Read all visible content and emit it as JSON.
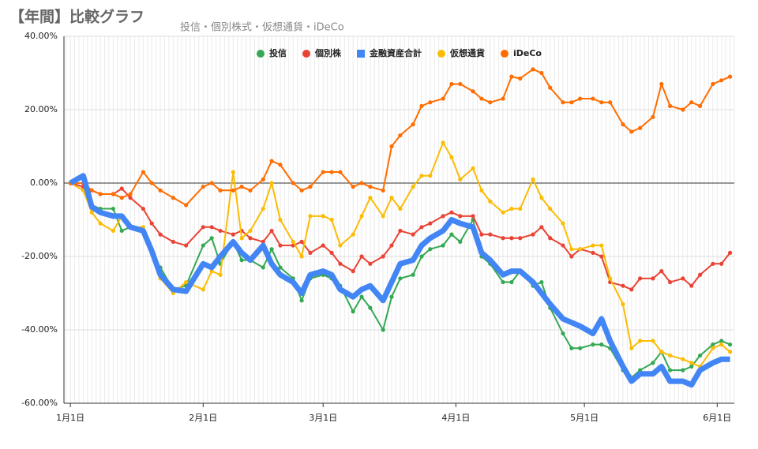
{
  "chart_data": {
    "type": "line",
    "title": "【年間】比較グラフ",
    "subtitle": "投信・個別株式・仮想通貨・iDeCo",
    "x": [
      0,
      3,
      5,
      7,
      10,
      12,
      14,
      17,
      19,
      21,
      24,
      27,
      31,
      33,
      35,
      38,
      40,
      42,
      45,
      47,
      49,
      52,
      54,
      56,
      59,
      61,
      63,
      66,
      68,
      70,
      73,
      75,
      77,
      80,
      82,
      84,
      87,
      89,
      91,
      94,
      96,
      98,
      101,
      103,
      105,
      108,
      110,
      112,
      115,
      117,
      119,
      122,
      124,
      126,
      129,
      131,
      133,
      136,
      138,
      140,
      143,
      145,
      147,
      150,
      152,
      154
    ],
    "xlim": [
      -1.5,
      155
    ],
    "xticks": [
      {
        "value": 0,
        "label": "1月1日"
      },
      {
        "value": 31,
        "label": "2月1日"
      },
      {
        "value": 59,
        "label": "3月1日"
      },
      {
        "value": 90,
        "label": "4月1日"
      },
      {
        "value": 120,
        "label": "5月1日"
      },
      {
        "value": 151,
        "label": "6月1日"
      }
    ],
    "ylim": [
      -60,
      40
    ],
    "yticks": [
      {
        "value": -60,
        "label": "-60.00%"
      },
      {
        "value": -40,
        "label": "-40.00%"
      },
      {
        "value": -20,
        "label": "-20.00%"
      },
      {
        "value": 0,
        "label": "0.00%"
      },
      {
        "value": 20,
        "label": "20.00%"
      },
      {
        "value": 40,
        "label": "40.00%"
      }
    ],
    "grid": true,
    "legend": "top",
    "series": [
      {
        "name": "投信",
        "color": "#34a853",
        "marker": "circle",
        "values": [
          0,
          -1,
          -6,
          -7,
          -7,
          -13,
          -12,
          -13,
          -19,
          -23,
          -29,
          -28,
          -17,
          -15,
          -22,
          -16,
          -21,
          -21,
          -23,
          -18,
          -23,
          -26,
          -32,
          -26,
          -25,
          -26,
          -28,
          -35,
          -31,
          -34,
          -40,
          -31,
          -26,
          -25,
          -20,
          -18,
          -17,
          -14,
          -16,
          -10,
          -20,
          -22,
          -27,
          -27,
          -24,
          -28,
          -27,
          -34,
          -41,
          -45,
          -45,
          -44,
          -44,
          -45,
          -51,
          -53,
          -51,
          -49,
          -46,
          -51,
          -51,
          -50,
          -47,
          -44,
          -43,
          -44
        ]
      },
      {
        "name": "個別株",
        "color": "#ea4335",
        "marker": "circle",
        "values": [
          0,
          -1,
          -2,
          -3,
          -3,
          -1.5,
          -4,
          -7,
          -11,
          -14,
          -16,
          -17,
          -12,
          -12,
          -13,
          -14,
          -13,
          -15,
          -16,
          -13,
          -17,
          -17,
          -16,
          -19,
          -17,
          -19,
          -22,
          -24,
          -20,
          -22,
          -20,
          -17,
          -13,
          -14,
          -12,
          -11,
          -9,
          -8,
          -9,
          -9,
          -14,
          -14,
          -15,
          -15,
          -15,
          -14,
          -12,
          -15,
          -17,
          -20,
          -18,
          -19,
          -20,
          -27,
          -28,
          -29,
          -26,
          -26,
          -24,
          -27,
          -26,
          -28,
          -25,
          -22,
          -22,
          -19
        ]
      },
      {
        "name": "金融資産合計",
        "color": "#4285f4",
        "marker": "square",
        "values": [
          0,
          2,
          -6.5,
          -8,
          -9,
          -9,
          -12,
          -13,
          -18.5,
          -25,
          -29,
          -29.5,
          -22,
          -23,
          -20,
          -16,
          -19,
          -21,
          -17,
          -22,
          -25,
          -27,
          -30,
          -25,
          -24,
          -25,
          -29,
          -31,
          -29,
          -28,
          -32,
          -27,
          -22,
          -21,
          -17,
          -15,
          -13,
          -10,
          -11,
          -12,
          -19,
          -21,
          -25,
          -24,
          -24,
          -27,
          -30,
          -33,
          -37,
          -38,
          -39,
          -41,
          -37,
          -43,
          -50,
          -54,
          -52,
          -52,
          -50,
          -54,
          -54,
          -55,
          -51,
          -49,
          -48,
          -48
        ]
      },
      {
        "name": "仮想通貨",
        "color": "#fbbc04",
        "marker": "circle",
        "values": [
          0,
          -2,
          -8,
          -11,
          -13,
          -9,
          -12,
          -12,
          -18,
          -26,
          -30,
          -27,
          -29,
          -24,
          -25,
          3,
          -15,
          -13,
          -7,
          0,
          -10,
          -16,
          -20,
          -9,
          -9,
          -10,
          -17,
          -14,
          -9,
          -4,
          -9,
          -4,
          -7,
          -1,
          2,
          2,
          11,
          7,
          1,
          4,
          -2,
          -5,
          -8,
          -7,
          -7,
          1,
          -4,
          -7,
          -11,
          -18,
          -18,
          -17,
          -17,
          -26,
          -33,
          -45,
          -43,
          -43,
          -46,
          -47,
          -48,
          -49,
          -50,
          -45,
          -44,
          -46
        ]
      },
      {
        "name": "iDeCo",
        "color": "#ff6d01",
        "marker": "circle",
        "values": [
          0,
          0,
          -2,
          -3,
          -3,
          -4,
          -3,
          3,
          0,
          -2,
          -4,
          -6,
          -1,
          0,
          -2,
          -2,
          -1,
          -2,
          1,
          6,
          5,
          0,
          -2,
          -1,
          3,
          3,
          3,
          -1,
          0,
          -1,
          -2,
          10,
          13,
          16,
          21,
          22,
          23,
          27,
          27,
          25,
          23,
          22,
          23,
          29,
          28.5,
          31,
          30,
          26,
          22,
          22,
          23,
          23,
          22,
          22,
          16,
          14,
          15,
          18,
          27,
          21,
          20,
          22,
          21,
          27,
          28,
          29
        ]
      }
    ]
  }
}
